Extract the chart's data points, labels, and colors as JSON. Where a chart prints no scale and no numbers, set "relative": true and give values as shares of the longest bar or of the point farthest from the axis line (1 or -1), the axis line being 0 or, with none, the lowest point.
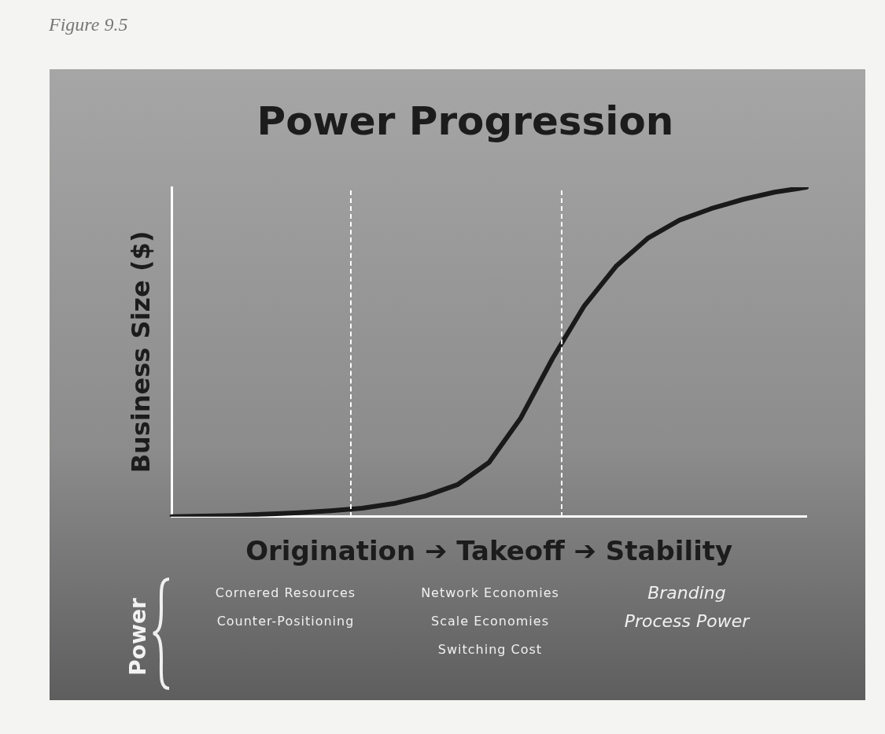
{
  "chart_data": {
    "type": "line",
    "title": "Power Progression",
    "xlabel": "Origination ➔ Takeoff ➔ Stability",
    "ylabel": "Business Size ($)",
    "relative": true,
    "legend": false,
    "marker": "none",
    "line_style": "solid",
    "categories": [
      null,
      null,
      null,
      null,
      null,
      null,
      null,
      null,
      null,
      null,
      null,
      null,
      null,
      null,
      null,
      null,
      null,
      null,
      null,
      null,
      null
    ],
    "series": [
      {
        "color": "#1a1a1a",
        "values": [
          0,
          0.002,
          0.004,
          0.008,
          0.012,
          0.018,
          0.026,
          0.04,
          0.063,
          0.097,
          0.165,
          0.3,
          0.48,
          0.64,
          0.76,
          0.845,
          0.9,
          0.935,
          0.963,
          0.985,
          1
        ]
      }
    ],
    "annotations": [
      "Figure 9.5",
      "Power",
      "Cornered Resources\nCounter-Positioning",
      "Network Economies\nScale Economies\nSwitching Cost",
      "Branding\nProcess Power"
    ]
  }
}
